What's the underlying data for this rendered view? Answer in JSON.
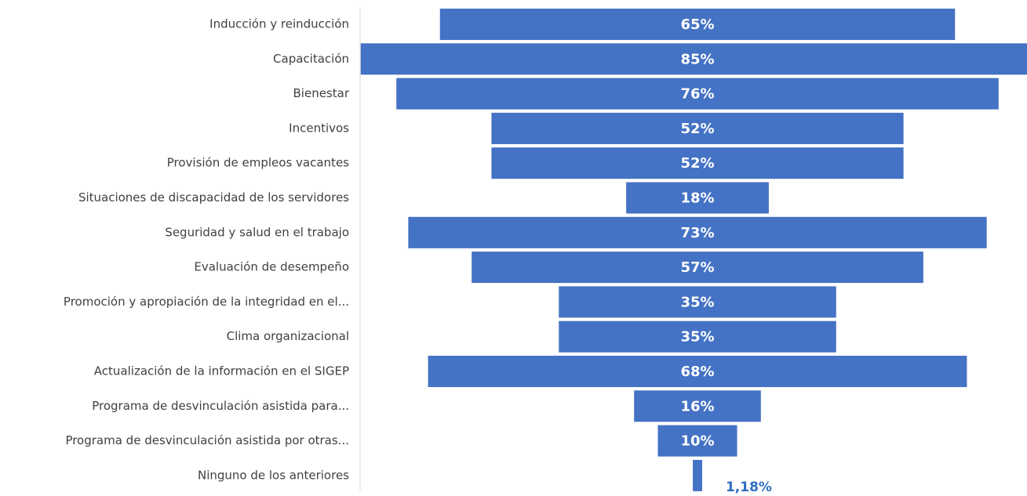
{
  "chart_data": {
    "type": "funnel",
    "categories": [
      "Inducción y reinducción",
      "Capacitación",
      "Bienestar",
      "Incentivos",
      "Provisión de empleos vacantes",
      "Situaciones de discapacidad de los servidores",
      "Seguridad y salud en el trabajo",
      "Evaluación de desempeño",
      "Promoción y apropiación de la integridad en el...",
      "Clima organizacional",
      "Actualización de la información en el SIGEP",
      "Programa de desvinculación asistida para...",
      "Programa de desvinculación asistida por otras...",
      "Ninguno de los anteriores"
    ],
    "values": [
      65,
      85,
      76,
      52,
      52,
      18,
      73,
      57,
      35,
      35,
      68,
      16,
      10,
      1.18
    ],
    "value_labels": [
      "65%",
      "85%",
      "76%",
      "52%",
      "52%",
      "18%",
      "73%",
      "57%",
      "35%",
      "35%",
      "68%",
      "16%",
      "10%",
      "1,18%"
    ],
    "color": "#4472c4"
  }
}
